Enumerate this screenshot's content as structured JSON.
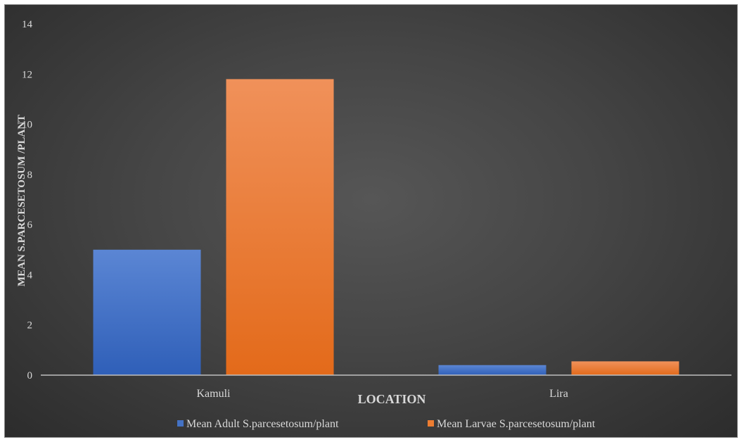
{
  "chart_data": {
    "type": "bar",
    "title": "",
    "xlabel": "LOCATION",
    "ylabel": "MEAN S.PARCESETOSUM /PLANT",
    "categories": [
      "Kamuli",
      "Lira"
    ],
    "series": [
      {
        "name": "Mean Adult S.parcesetosum/plant",
        "values": [
          5.0,
          0.4
        ],
        "color": "#4472C4"
      },
      {
        "name": "Mean Larvae S.parcesetosum/plant",
        "values": [
          11.8,
          0.55
        ],
        "color": "#ED7D31"
      }
    ],
    "ylim": [
      0,
      14
    ],
    "yticks": [
      "0",
      "2",
      "4",
      "6",
      "8",
      "10",
      "12",
      "14"
    ],
    "grid": false,
    "legend_position": "bottom"
  }
}
